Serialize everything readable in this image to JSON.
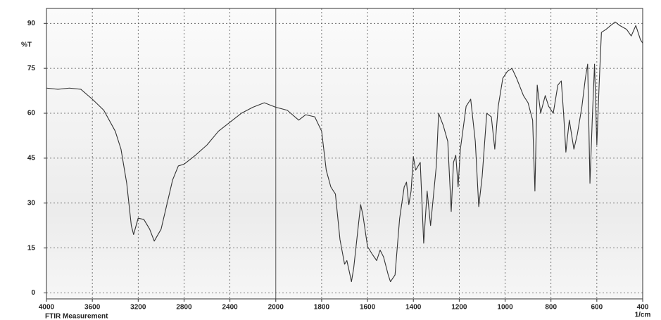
{
  "chart_data": {
    "type": "line",
    "xlabel": "1/cm",
    "ylabel": "%T",
    "footer": "FTIR Measurement",
    "color": "#333333",
    "grid": true,
    "xlim": [
      4000,
      400
    ],
    "xticks": [
      4000,
      3600,
      3200,
      2800,
      2400,
      2000,
      1800,
      1600,
      1400,
      1200,
      1000,
      800,
      600,
      400
    ],
    "ylim": [
      -2,
      95
    ],
    "yticks": [
      0,
      15,
      30,
      45,
      60,
      75,
      90
    ],
    "x": [
      4000,
      3900,
      3800,
      3700,
      3600,
      3500,
      3400,
      3350,
      3300,
      3260,
      3240,
      3200,
      3150,
      3100,
      3060,
      3000,
      2950,
      2900,
      2850,
      2800,
      2700,
      2600,
      2500,
      2400,
      2300,
      2200,
      2100,
      2000,
      1950,
      1900,
      1870,
      1830,
      1800,
      1780,
      1760,
      1740,
      1720,
      1700,
      1690,
      1680,
      1670,
      1660,
      1640,
      1630,
      1620,
      1600,
      1580,
      1560,
      1545,
      1530,
      1510,
      1500,
      1480,
      1460,
      1440,
      1430,
      1420,
      1410,
      1400,
      1390,
      1370,
      1355,
      1340,
      1325,
      1300,
      1290,
      1270,
      1250,
      1235,
      1225,
      1215,
      1205,
      1195,
      1170,
      1150,
      1130,
      1115,
      1100,
      1080,
      1060,
      1045,
      1030,
      1010,
      990,
      970,
      950,
      920,
      900,
      880,
      870,
      860,
      845,
      825,
      810,
      790,
      770,
      755,
      745,
      735,
      720,
      700,
      685,
      665,
      650,
      640,
      630,
      620,
      610,
      600,
      590,
      580,
      560,
      540,
      520,
      500,
      470,
      450,
      430,
      410,
      400
    ],
    "values": [
      68.4,
      68,
      68.4,
      68,
      64.7,
      61,
      54,
      48,
      36.6,
      22.5,
      19.5,
      25,
      24.5,
      21.3,
      17.3,
      21.3,
      29.5,
      37.7,
      42.4,
      43,
      46,
      49.4,
      54,
      57,
      60,
      62,
      63.5,
      62,
      61,
      57.7,
      59.5,
      58.8,
      54,
      41,
      35.4,
      33,
      17.8,
      9.6,
      10.8,
      7.3,
      3.75,
      8.4,
      22.5,
      29.5,
      26,
      15.5,
      13,
      10.8,
      14.3,
      12,
      6.1,
      3.75,
      6,
      24.8,
      35.4,
      37,
      29.5,
      34,
      45.5,
      41,
      43.6,
      16.6,
      34,
      22.5,
      42.4,
      60,
      56,
      50.6,
      27.2,
      43.6,
      46,
      35.4,
      48,
      62.3,
      64.7,
      50.6,
      28.8,
      38.9,
      60,
      58.8,
      48,
      62.3,
      71.7,
      74,
      75,
      71.7,
      65.9,
      63.5,
      57.7,
      34,
      69.4,
      60,
      65.9,
      62.3,
      60,
      69.4,
      70.8,
      60,
      47,
      57.7,
      48,
      53,
      62.3,
      71.7,
      76.4,
      36.6,
      57.7,
      76.4,
      49.4,
      69.4,
      87,
      88,
      89.3,
      90.5,
      89.3,
      88,
      85.8,
      89.3,
      84.6,
      83.4
    ]
  }
}
